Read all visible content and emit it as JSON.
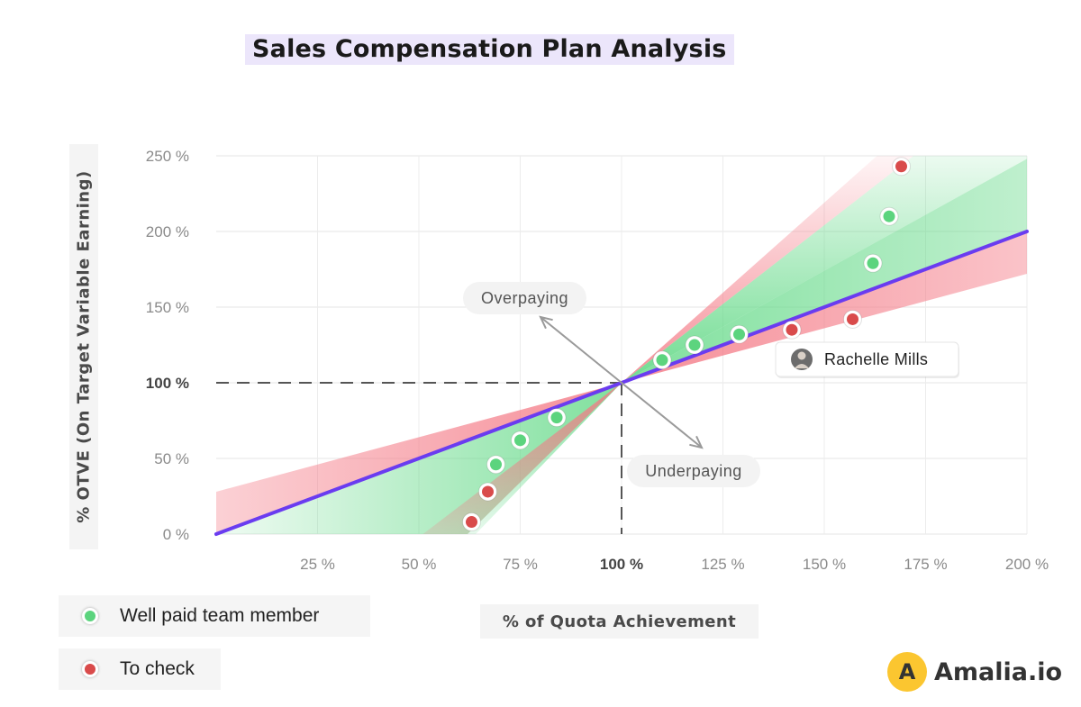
{
  "title": "Sales Compensation Plan Analysis",
  "chart_data": {
    "type": "scatter",
    "title": "Sales Compensation Plan Analysis",
    "xlabel": "% of Quota Achievement",
    "ylabel": "% OTVE (On Target Variable Earning)",
    "xlim": [
      0,
      200
    ],
    "ylim": [
      0,
      250
    ],
    "x_ticks": [
      25,
      50,
      75,
      100,
      125,
      150,
      175,
      200
    ],
    "x_tick_labels": [
      "25 %",
      "50 %",
      "75 %",
      "100 %",
      "125 %",
      "150 %",
      "175 %",
      "200 %"
    ],
    "y_ticks": [
      0,
      50,
      100,
      150,
      200,
      250
    ],
    "y_tick_labels": [
      "0 %",
      "50 %",
      "100 %",
      "150 %",
      "200 %",
      "250 %"
    ],
    "grid": true,
    "reference_line": {
      "name": "Target payout",
      "x": [
        0,
        200
      ],
      "y": [
        0,
        200
      ],
      "color": "#6a3cf0"
    },
    "reference_point": {
      "x": 100,
      "y": 100
    },
    "bands": [
      {
        "name": "Well paid zone",
        "color": "#5fd884",
        "slope_low": 1.15,
        "slope_high": 2.1
      },
      {
        "name": "Well paid zone",
        "color": "#5fd884",
        "slope_low": 0.72,
        "slope_high": 1.0
      },
      {
        "name": "Well paid zone",
        "color": "#5fd884",
        "slope_low": 1.0,
        "slope_high": 0.9
      },
      {
        "name": "To check zone",
        "color": "#f47a86",
        "slope_low": 0.72,
        "slope_high": 0.55
      },
      {
        "name": "To check zone",
        "color": "#f47a86",
        "slope_low": 2.1,
        "slope_high": 2.3
      },
      {
        "name": "To check zone",
        "color": "#f47a86",
        "slope_low": 0.9,
        "slope_high": 0.72
      },
      {
        "name": "To check zone",
        "color": "#f47a86",
        "slope_low": 2.1,
        "slope_high": 2.2
      }
    ],
    "series": [
      {
        "name": "Well paid team member",
        "color": "#5cd47e",
        "points": [
          [
            69,
            46
          ],
          [
            75,
            62
          ],
          [
            84,
            77
          ],
          [
            110,
            115
          ],
          [
            118,
            125
          ],
          [
            129,
            132
          ],
          [
            162,
            179
          ],
          [
            166,
            210
          ]
        ]
      },
      {
        "name": "To check",
        "color": "#d94b4b",
        "points": [
          [
            63,
            8
          ],
          [
            67,
            28
          ],
          [
            142,
            135
          ],
          [
            157,
            142
          ],
          [
            169,
            243
          ]
        ]
      }
    ],
    "annotations": [
      {
        "text": "Overpaying",
        "direction": "up-left"
      },
      {
        "text": "Underpaying",
        "direction": "down-right"
      },
      {
        "text": "Rachelle Mills",
        "x": 142,
        "y": 135
      }
    ]
  },
  "legend": [
    {
      "label": "Well paid team member",
      "color": "#5cd47e"
    },
    {
      "label": "To check",
      "color": "#d94b4b"
    }
  ],
  "brand": {
    "mark": "A",
    "name": "Amalia.io",
    "color": "#fbc630"
  }
}
